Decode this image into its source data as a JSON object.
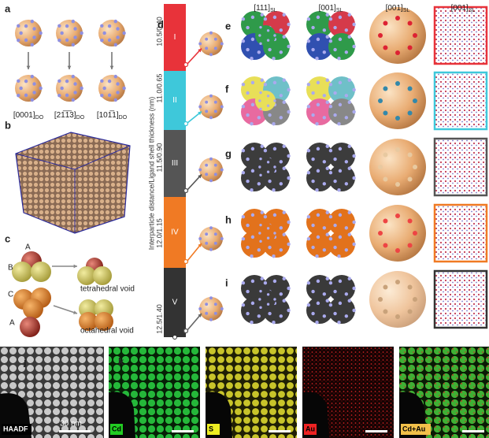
{
  "panel_letters": [
    "a",
    "b",
    "c",
    "d",
    "e",
    "f",
    "g",
    "h",
    "i",
    "j",
    "k"
  ],
  "panel_a": {
    "labels": [
      {
        "main": "[0001]",
        "sub": "DO"
      },
      {
        "main": "[21̅1̅3]",
        "sub": "DO"
      },
      {
        "main": "[101̅1]",
        "sub": "DO"
      }
    ]
  },
  "panel_c": {
    "layers": [
      "A",
      "B",
      "C",
      "A"
    ],
    "voids": [
      "tetrahedral void",
      "octahedral void"
    ]
  },
  "panel_d": {
    "axis_label": "Interparticle distance/Ligand shell thickness (nm)",
    "ticks": [
      "10.5/0.40",
      "11.0/0.65",
      "11.5/0.90",
      "12.0/1.15",
      "12.5/1.40"
    ],
    "phases": [
      "I",
      "II",
      "III",
      "IV",
      "V"
    ]
  },
  "columns": [
    {
      "main": "[111]",
      "sub": "SL"
    },
    {
      "main": "[001]",
      "sub": "SL"
    },
    {
      "main": "[001]",
      "sub": "SL"
    },
    {
      "main": "[001]",
      "sub": "SL"
    }
  ],
  "panel_j": {
    "label": "HAADF",
    "scale_bar": "30 nm"
  },
  "panel_k": {
    "channels": [
      "Cd",
      "S",
      "Au",
      "Cd+Au"
    ]
  }
}
